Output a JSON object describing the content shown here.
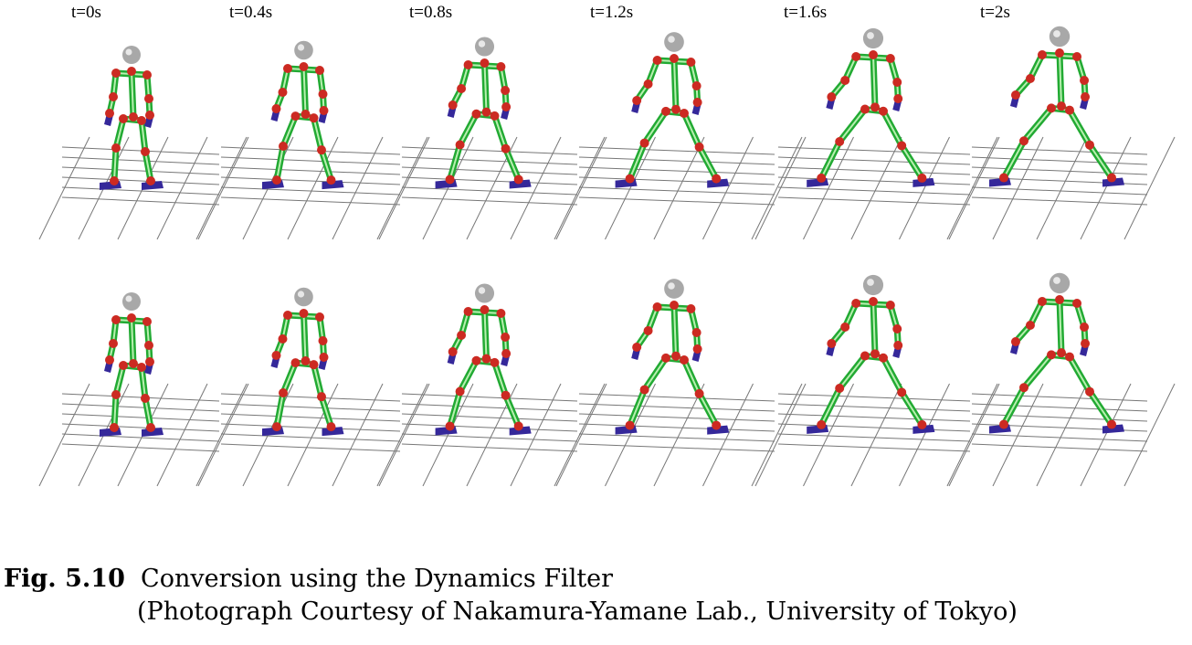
{
  "frames": [
    "t=0s",
    "t=0.4s",
    "t=0.8s",
    "t=1.2s",
    "t=1.6s",
    "t=2s"
  ],
  "caption": {
    "number": "Fig. 5.10",
    "title": "Conversion using the Dynamics Filter",
    "credit": "(Photograph Courtesy of Nakamura-Yamane Lab., University of Tokyo)"
  },
  "colors": {
    "bone": "#22aa33",
    "bone_highlight": "#b8f0b0",
    "joint": "#cc2a22",
    "head": "#a8a8a8",
    "foot": "#35289a",
    "grid": "#777777"
  }
}
